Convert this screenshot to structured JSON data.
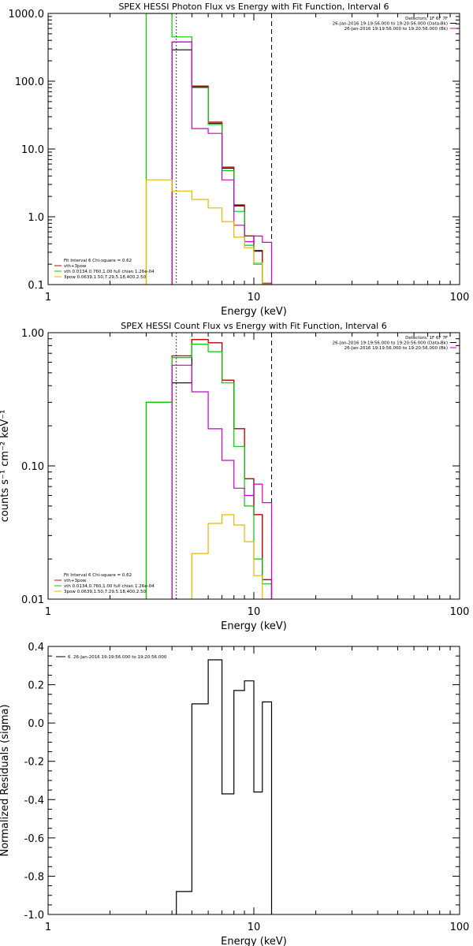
{
  "chart_data": [
    {
      "type": "line",
      "title": "SPEX HESSI Photon Flux vs Energy with Fit Function, Interval 6",
      "xlabel": "Energy (keV)",
      "ylabel": "",
      "xscale": "log",
      "yscale": "log",
      "xlim": [
        1,
        100
      ],
      "ylim": [
        0.1,
        1000
      ],
      "xticks": [
        {
          "v": 1,
          "label": "1"
        },
        {
          "v": 10,
          "label": "10"
        },
        {
          "v": 100,
          "label": "100"
        }
      ],
      "yticks": [
        {
          "v": 0.1,
          "label": "0.1"
        },
        {
          "v": 1,
          "label": "1.0"
        },
        {
          "v": 10,
          "label": "10.0"
        },
        {
          "v": 100,
          "label": "100.0"
        },
        {
          "v": 1000,
          "label": "1000.0"
        }
      ],
      "vlines": [
        {
          "x": 4.2,
          "style": "dotted",
          "color": "#000000"
        },
        {
          "x": 12.2,
          "style": "dashed",
          "color": "#000000"
        }
      ],
      "legend_topright": [
        {
          "text": "Detectors: 1F 6F 7F",
          "color": null
        },
        {
          "text": "26-Jan-2016 19:19:56.000 to 19:20:56.000 (Data-Bk)",
          "color": "#000000"
        },
        {
          "text": "26-Jan-2016 19:19:56.000 to 19:20:56.000 (Bk)",
          "color": "#cc00cc"
        }
      ],
      "legend_bottomleft": [
        {
          "text": "Fit Interval 6   Chi-square = 0.62",
          "color": null
        },
        {
          "text": "vth+3pow",
          "color": "#cc0000"
        },
        {
          "text": "vth 0.0134,0.760,1.00  full chian 1.26e-04",
          "color": "#00cc00"
        },
        {
          "text": "3pow 0.0639,1.50,7.29,5.18,400,2.50",
          "color": "#e6b800"
        }
      ],
      "edges": [
        3.0,
        4.0,
        5.0,
        6.0,
        7.0,
        8.0,
        9.0,
        10.0,
        11.0,
        12.2
      ],
      "series": [
        {
          "color": "#000000",
          "values": [
            null,
            290,
            83,
            24,
            5.2,
            1.45,
            0.52,
            0.31,
            0.1
          ]
        },
        {
          "color": "#cc0000",
          "values": [
            null,
            380,
            85,
            25,
            5.4,
            1.5,
            0.52,
            0.32,
            0.105
          ]
        },
        {
          "color": "#00cc00",
          "values": [
            1000,
            450,
            80,
            23,
            4.8,
            1.2,
            0.38,
            0.2,
            0.1
          ]
        },
        {
          "color": "#cc00cc",
          "values": [
            null,
            380,
            20,
            17,
            3.5,
            0.75,
            0.43,
            0.52,
            0.42
          ]
        },
        {
          "color": "#e6b800",
          "values": [
            3.5,
            2.4,
            1.8,
            1.35,
            0.85,
            0.5,
            0.35,
            0.21,
            0.1
          ]
        }
      ]
    },
    {
      "type": "line",
      "title": "SPEX HESSI Count Flux vs Energy with Fit Function, Interval 6",
      "xlabel": "Energy (keV)",
      "ylabel": "counts s⁻¹ cm⁻² keV⁻¹",
      "xscale": "log",
      "yscale": "log",
      "xlim": [
        1,
        100
      ],
      "ylim": [
        0.01,
        1
      ],
      "xticks": [
        {
          "v": 1,
          "label": "1"
        },
        {
          "v": 10,
          "label": "10"
        },
        {
          "v": 100,
          "label": "100"
        }
      ],
      "yticks": [
        {
          "v": 0.01,
          "label": "0.01"
        },
        {
          "v": 0.1,
          "label": "0.10"
        },
        {
          "v": 1,
          "label": "1.00"
        }
      ],
      "vlines": [
        {
          "x": 4.2,
          "style": "dotted",
          "color": "#000000"
        },
        {
          "x": 12.2,
          "style": "dashed",
          "color": "#000000"
        }
      ],
      "legend_topright": [
        {
          "text": "Detectors: 1F 6F 7F",
          "color": null
        },
        {
          "text": "26-Jan-2016 19:19:56.000 to 19:20:56.000 (Data-Bk)",
          "color": "#000000"
        },
        {
          "text": "26-Jan-2016 19:19:56.000 to 19:20:56.000 (Bk)",
          "color": "#cc00cc"
        }
      ],
      "legend_bottomleft": [
        {
          "text": "Fit Interval 6   Chi-square = 0.62",
          "color": null
        },
        {
          "text": "vth+3pow",
          "color": "#cc0000"
        },
        {
          "text": "vth 0.0134,0.760,1.00  full chian 1.26e-04",
          "color": "#00cc00"
        },
        {
          "text": "3pow 0.0639,1.50,7.29,5.18,400,2.50",
          "color": "#e6b800"
        }
      ],
      "edges": [
        3.0,
        4.0,
        5.0,
        6.0,
        7.0,
        8.0,
        9.0,
        10.0,
        11.0,
        12.2
      ],
      "series": [
        {
          "color": "#000000",
          "values": [
            null,
            0.42,
            0.89,
            0.84,
            0.44,
            0.19,
            0.08,
            0.043,
            0.014
          ]
        },
        {
          "color": "#cc0000",
          "values": [
            0.3,
            0.67,
            0.89,
            0.84,
            0.44,
            0.19,
            0.08,
            0.043,
            0.014
          ]
        },
        {
          "color": "#00cc00",
          "values": [
            0.3,
            0.65,
            0.82,
            0.72,
            0.42,
            0.14,
            0.05,
            0.02,
            0.013
          ]
        },
        {
          "color": "#cc00cc",
          "values": [
            null,
            0.57,
            0.36,
            0.19,
            0.11,
            0.068,
            0.06,
            0.073,
            0.053
          ]
        },
        {
          "color": "#e6b800",
          "values": [
            null,
            null,
            0.022,
            0.037,
            0.043,
            0.036,
            0.027,
            0.015,
            0.01
          ]
        }
      ]
    },
    {
      "type": "line",
      "title": "",
      "xlabel": "Energy (keV)",
      "ylabel": "Normalized Residuals (sigma)",
      "xscale": "log",
      "yscale": "linear",
      "xlim": [
        1,
        100
      ],
      "ylim": [
        -1.0,
        0.4
      ],
      "xticks": [
        {
          "v": 1,
          "label": "1"
        },
        {
          "v": 10,
          "label": "10"
        },
        {
          "v": 100,
          "label": "100"
        }
      ],
      "yticks": [
        {
          "v": -1.0,
          "label": "-1.0"
        },
        {
          "v": -0.8,
          "label": "-0.8"
        },
        {
          "v": -0.6,
          "label": "-0.6"
        },
        {
          "v": -0.4,
          "label": "-0.4"
        },
        {
          "v": -0.2,
          "label": "-0.2"
        },
        {
          "v": 0.0,
          "label": "0.0"
        },
        {
          "v": 0.2,
          "label": "0.2"
        },
        {
          "v": 0.4,
          "label": "0.4"
        }
      ],
      "vlines": [],
      "legend_topleft": [
        {
          "text": "6. 26-Jan-2016 19:19:56.000 to 19:20:56.000",
          "color": "#000000"
        }
      ],
      "edges": [
        4.2,
        5.0,
        6.0,
        7.0,
        8.0,
        9.0,
        10.0,
        11.0,
        12.2
      ],
      "series": [
        {
          "color": "#000000",
          "values": [
            -0.88,
            0.1,
            0.33,
            -0.37,
            0.17,
            0.22,
            -0.36,
            0.11
          ]
        }
      ]
    }
  ]
}
